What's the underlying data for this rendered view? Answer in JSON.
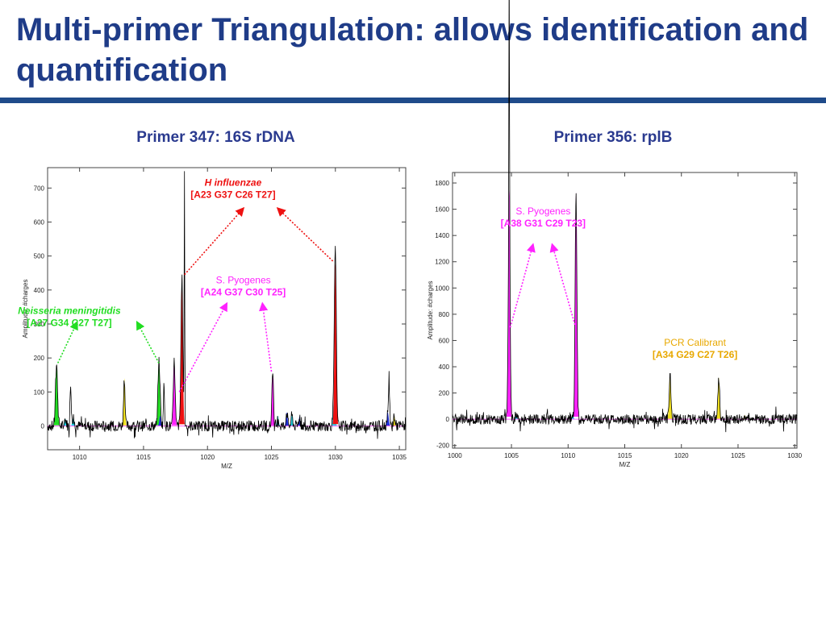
{
  "title": "Multi-primer Triangulation: allows identification and quantification",
  "colors": {
    "title": "#1f3c88",
    "rule": "#1f4b8a",
    "green": "#22dd22",
    "red": "#ee1111",
    "magenta": "#ff22ff",
    "cyan": "#22ddee",
    "blue": "#2233dd",
    "yellow": "#f0e020",
    "orange": "#e8a800"
  },
  "chart_data": [
    {
      "type": "line",
      "panel_title": "Primer 347: 16S rDNA",
      "xlabel": "M/Z",
      "ylabel": "Amplitude: #charges",
      "xlim": [
        1007.5,
        1035.5
      ],
      "ylim": [
        -70,
        760
      ],
      "xticks": [
        1010,
        1015,
        1020,
        1025,
        1030,
        1035
      ],
      "yticks": [
        0,
        100,
        200,
        300,
        400,
        500,
        600,
        700
      ],
      "peaks": [
        {
          "x": 1008.2,
          "y": 180,
          "w": 0.18,
          "color": "green"
        },
        {
          "x": 1008.9,
          "y": 20,
          "w": 0.15,
          "color": "cyan"
        },
        {
          "x": 1009.3,
          "y": 130,
          "w": 0.1,
          "color": "black"
        },
        {
          "x": 1009.5,
          "y": 22,
          "w": 0.15,
          "color": "cyan"
        },
        {
          "x": 1013.5,
          "y": 140,
          "w": 0.13,
          "color": "yellow"
        },
        {
          "x": 1016.2,
          "y": 180,
          "w": 0.17,
          "color": "green"
        },
        {
          "x": 1016.3,
          "y": 30,
          "w": 0.14,
          "color": "blue"
        },
        {
          "x": 1016.6,
          "y": 120,
          "w": 0.1,
          "color": "black"
        },
        {
          "x": 1017.4,
          "y": 190,
          "w": 0.15,
          "color": "magenta"
        },
        {
          "x": 1018.0,
          "y": 440,
          "w": 0.16,
          "color": "red"
        },
        {
          "x": 1018.2,
          "y": 740,
          "w": 0.05,
          "color": "black"
        },
        {
          "x": 1025.1,
          "y": 150,
          "w": 0.14,
          "color": "magenta"
        },
        {
          "x": 1025.5,
          "y": 30,
          "w": 0.14,
          "color": "cyan"
        },
        {
          "x": 1026.2,
          "y": 40,
          "w": 0.14,
          "color": "blue"
        },
        {
          "x": 1026.6,
          "y": 30,
          "w": 0.14,
          "color": "cyan"
        },
        {
          "x": 1027.2,
          "y": 28,
          "w": 0.14,
          "color": "blue"
        },
        {
          "x": 1029.9,
          "y": 90,
          "w": 0.16,
          "color": "cyan"
        },
        {
          "x": 1030.0,
          "y": 480,
          "w": 0.16,
          "color": "red"
        },
        {
          "x": 1034.1,
          "y": 40,
          "w": 0.15,
          "color": "blue"
        },
        {
          "x": 1034.2,
          "y": 120,
          "w": 0.09,
          "color": "black"
        },
        {
          "x": 1034.6,
          "y": 30,
          "w": 0.14,
          "color": "yellow"
        }
      ],
      "annotations": [
        {
          "lines": [
            "Neisseria meningitidis",
            "[A27 G34 C27 T27]"
          ],
          "color": "green",
          "italic_first": true,
          "anchor": [
            1009.2,
            330
          ],
          "arrows": [
            {
              "from": [
                1008.3,
                185
              ],
              "to": [
                1009.8,
                305
              ]
            },
            {
              "from": [
                1016.2,
                185
              ],
              "to": [
                1014.5,
                305
              ]
            }
          ]
        },
        {
          "lines": [
            "H influenzae",
            "[A23 G37 C26 T27]"
          ],
          "color": "red",
          "italic_first": true,
          "anchor": [
            1022.0,
            707
          ],
          "arrows": [
            {
              "from": [
                1018.2,
                445
              ],
              "to": [
                1022.8,
                640
              ]
            },
            {
              "from": [
                1029.8,
                485
              ],
              "to": [
                1025.5,
                640
              ]
            }
          ]
        },
        {
          "lines": [
            "S. Pyogenes",
            "[A24 G37 C30 T25]"
          ],
          "color": "magenta",
          "italic_first": false,
          "anchor": [
            1022.8,
            420
          ],
          "arrows": [
            {
              "from": [
                1017.8,
                100
              ],
              "to": [
                1021.5,
                360
              ]
            },
            {
              "from": [
                1025.0,
                160
              ],
              "to": [
                1024.3,
                360
              ]
            }
          ]
        }
      ]
    },
    {
      "type": "line",
      "panel_title": "Primer 356: rplB",
      "xlabel": "M/Z",
      "ylabel": "Amplitude: #charges",
      "xlim": [
        999.8,
        1030.2
      ],
      "ylim": [
        -220,
        1880
      ],
      "xticks": [
        1000,
        1005,
        1010,
        1015,
        1020,
        1025,
        1030
      ],
      "yticks": [
        -200,
        0,
        200,
        400,
        600,
        800,
        1000,
        1200,
        1400,
        1600,
        1800
      ],
      "peaks": [
        {
          "x": 1004.8,
          "y": 1750,
          "w": 0.17,
          "color": "magenta"
        },
        {
          "x": 1004.8,
          "y": 1850,
          "w": 0.05,
          "color": "black"
        },
        {
          "x": 1005.4,
          "y": 40,
          "w": 0.15,
          "color": "cyan"
        },
        {
          "x": 1010.7,
          "y": 1730,
          "w": 0.17,
          "color": "magenta"
        },
        {
          "x": 1010.4,
          "y": 40,
          "w": 0.15,
          "color": "cyan"
        },
        {
          "x": 1019.0,
          "y": 340,
          "w": 0.18,
          "color": "yellow"
        },
        {
          "x": 1023.3,
          "y": 320,
          "w": 0.16,
          "color": "yellow"
        },
        {
          "x": 1025.6,
          "y": 30,
          "w": 0.15,
          "color": "yellow"
        }
      ],
      "annotations": [
        {
          "lines": [
            "S. Pyogenes",
            "[A38 G31 C29 T23]"
          ],
          "color": "magenta",
          "italic_first": false,
          "anchor": [
            1007.8,
            1560
          ],
          "arrows": [
            {
              "from": [
                1004.9,
                700
              ],
              "to": [
                1006.9,
                1330
              ]
            },
            {
              "from": [
                1010.6,
                720
              ],
              "to": [
                1008.6,
                1330
              ]
            }
          ]
        },
        {
          "lines": [
            "PCR Calibrant",
            "[A34 G29 C27 T26]"
          ],
          "color": "orange",
          "italic_first": false,
          "anchor": [
            1021.2,
            560
          ],
          "arrows": []
        }
      ]
    }
  ]
}
